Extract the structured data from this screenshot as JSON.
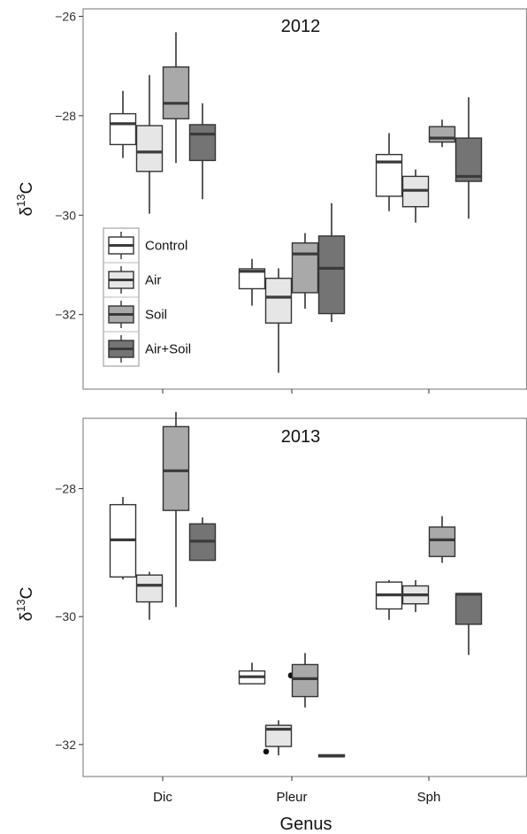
{
  "chart_data": [
    {
      "type": "boxplot",
      "title": "2012",
      "xlabel": "",
      "ylabel": "δ13C",
      "ylabel_parts": {
        "base": "δ",
        "sup": "13",
        "tail": "C"
      },
      "ylim": [
        -33.5,
        -25.85
      ],
      "yticks": [
        -32,
        -30,
        -28,
        -26
      ],
      "ytick_labels": [
        "−32",
        "−30",
        "−28",
        "−26"
      ],
      "categories": [
        "Dic",
        "Pleur",
        "Sph"
      ],
      "grid": false,
      "legend": {
        "placement": "left-middle",
        "entries": [
          "Control",
          "Air",
          "Soil",
          "Air+Soil"
        ]
      },
      "series": [
        {
          "name": "Control",
          "color": "#ffffff",
          "boxes": [
            {
              "category": "Dic",
              "whisker_low": -28.85,
              "q1": -28.58,
              "median": -28.16,
              "q3": -27.96,
              "whisker_high": -27.5
            },
            {
              "category": "Pleur",
              "whisker_low": -31.82,
              "q1": -31.48,
              "median": -31.13,
              "q3": -31.08,
              "whisker_high": -30.88
            },
            {
              "category": "Sph",
              "whisker_low": -29.92,
              "q1": -29.62,
              "median": -28.93,
              "q3": -28.78,
              "whisker_high": -28.35
            }
          ]
        },
        {
          "name": "Air",
          "color": "#e6e6e6",
          "boxes": [
            {
              "category": "Dic",
              "whisker_low": -29.97,
              "q1": -29.12,
              "median": -28.73,
              "q3": -28.2,
              "whisker_high": -27.18
            },
            {
              "category": "Pleur",
              "whisker_low": -33.17,
              "q1": -32.17,
              "median": -31.65,
              "q3": -31.27,
              "whisker_high": -31.07
            },
            {
              "category": "Sph",
              "whisker_low": -30.15,
              "q1": -29.83,
              "median": -29.5,
              "q3": -29.22,
              "whisker_high": -29.08
            }
          ]
        },
        {
          "name": "Soil",
          "color": "#a9a9a9",
          "boxes": [
            {
              "category": "Dic",
              "whisker_low": -28.95,
              "q1": -28.06,
              "median": -27.75,
              "q3": -27.02,
              "whisker_high": -26.32
            },
            {
              "category": "Pleur",
              "whisker_low": -31.88,
              "q1": -31.56,
              "median": -30.78,
              "q3": -30.56,
              "whisker_high": -30.36
            },
            {
              "category": "Sph",
              "whisker_low": -28.63,
              "q1": -28.53,
              "median": -28.45,
              "q3": -28.22,
              "whisker_high": -28.08
            }
          ]
        },
        {
          "name": "Air+Soil",
          "color": "#747474",
          "boxes": [
            {
              "category": "Dic",
              "whisker_low": -29.68,
              "q1": -28.9,
              "median": -28.37,
              "q3": -28.18,
              "whisker_high": -27.75
            },
            {
              "category": "Pleur",
              "whisker_low": -32.15,
              "q1": -31.98,
              "median": -31.07,
              "q3": -30.42,
              "whisker_high": -29.76
            },
            {
              "category": "Sph",
              "whisker_low": -30.07,
              "q1": -29.32,
              "median": -29.22,
              "q3": -28.45,
              "whisker_high": -27.63
            }
          ]
        }
      ]
    },
    {
      "type": "boxplot",
      "title": "2013",
      "xlabel": "Genus",
      "ylabel": "δ13C",
      "ylabel_parts": {
        "base": "δ",
        "sup": "13",
        "tail": "C"
      },
      "ylim": [
        -32.5,
        -26.9
      ],
      "yticks": [
        -32,
        -30,
        -28
      ],
      "ytick_labels": [
        "−32",
        "−30",
        "−28"
      ],
      "categories": [
        "Dic",
        "Pleur",
        "Sph"
      ],
      "grid": false,
      "series": [
        {
          "name": "Control",
          "color": "#ffffff",
          "boxes": [
            {
              "category": "Dic",
              "whisker_low": -29.42,
              "q1": -29.38,
              "median": -28.8,
              "q3": -28.25,
              "whisker_high": -28.13
            },
            {
              "category": "Pleur",
              "whisker_low": -31.05,
              "q1": -31.05,
              "median": -30.94,
              "q3": -30.85,
              "whisker_high": -30.72
            },
            {
              "category": "Sph",
              "whisker_low": -30.05,
              "q1": -29.88,
              "median": -29.66,
              "q3": -29.46,
              "whisker_high": -29.43
            }
          ]
        },
        {
          "name": "Air",
          "color": "#e6e6e6",
          "boxes": [
            {
              "category": "Dic",
              "whisker_low": -30.05,
              "q1": -29.77,
              "median": -29.51,
              "q3": -29.35,
              "whisker_high": -29.3
            },
            {
              "category": "Pleur",
              "whisker_low": -32.17,
              "q1": -32.03,
              "median": -31.76,
              "q3": -31.7,
              "whisker_high": -31.62,
              "outliers": [
                -32.11,
                -30.92
              ]
            },
            {
              "category": "Sph",
              "whisker_low": -29.93,
              "q1": -29.8,
              "median": -29.66,
              "q3": -29.52,
              "whisker_high": -29.43
            }
          ]
        },
        {
          "name": "Soil",
          "color": "#a9a9a9",
          "boxes": [
            {
              "category": "Dic",
              "whisker_low": -29.85,
              "q1": -28.34,
              "median": -27.72,
              "q3": -27.03,
              "whisker_high": -26.8
            },
            {
              "category": "Pleur",
              "whisker_low": -31.42,
              "q1": -31.25,
              "median": -30.97,
              "q3": -30.75,
              "whisker_high": -30.57
            },
            {
              "category": "Sph",
              "whisker_low": -29.16,
              "q1": -29.06,
              "median": -28.8,
              "q3": -28.6,
              "whisker_high": -28.43
            }
          ]
        },
        {
          "name": "Air+Soil",
          "color": "#747474",
          "boxes": [
            {
              "category": "Dic",
              "whisker_low": -29.12,
              "q1": -29.12,
              "median": -28.82,
              "q3": -28.55,
              "whisker_high": -28.45
            },
            {
              "category": "Pleur",
              "whisker_low": -32.19,
              "q1": -32.19,
              "median": -32.18,
              "q3": -32.16,
              "whisker_high": -32.16
            },
            {
              "category": "Sph",
              "whisker_low": -30.6,
              "q1": -30.12,
              "median": -29.65,
              "q3": -29.64,
              "whisker_high": -29.64
            }
          ]
        }
      ]
    }
  ]
}
